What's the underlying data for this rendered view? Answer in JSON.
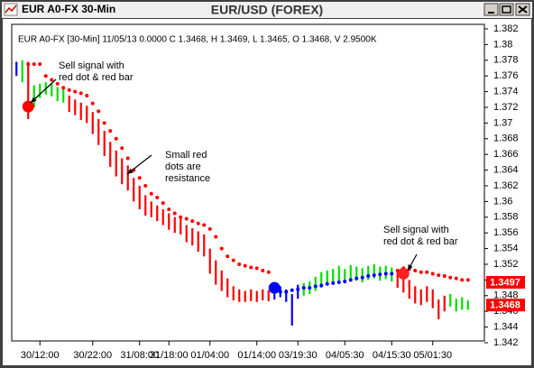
{
  "window": {
    "title": "EUR A0-FX 30-Min"
  },
  "chart_data": {
    "type": "price-bars",
    "title": "EUR/USD (FOREX)",
    "info": "EUR A0-FX [30-Min] 11/05/13  0.0000 C 1.3468, H 1.3469, L 1.3465, O 1.3468, V 2.9500K",
    "categories": [
      null,
      null,
      null,
      null,
      "30/12:00",
      null,
      null,
      null,
      null,
      null,
      null,
      null,
      null,
      "30/22:00",
      null,
      null,
      null,
      null,
      null,
      null,
      null,
      "31/08:00",
      null,
      null,
      null,
      null,
      "31/18:00",
      null,
      null,
      null,
      null,
      null,
      null,
      "01/04:00",
      null,
      null,
      null,
      null,
      null,
      null,
      null,
      "01/14:00",
      null,
      null,
      null,
      null,
      null,
      null,
      "03/19:30",
      null,
      null,
      null,
      null,
      null,
      null,
      null,
      "04/05:30",
      null,
      null,
      null,
      null,
      null,
      null,
      null,
      "04/15:30",
      null,
      null,
      null,
      null,
      null,
      null,
      "05/01:30",
      null,
      null,
      null,
      null,
      null,
      null
    ],
    "high": [
      1.3778,
      1.378,
      1.3778,
      1.3748,
      1.375,
      1.3752,
      1.375,
      1.3746,
      1.3744,
      1.3735,
      1.373,
      1.3726,
      1.3722,
      1.3714,
      1.3705,
      1.369,
      1.3676,
      1.3665,
      1.3655,
      1.3646,
      1.363,
      1.362,
      1.3608,
      1.36,
      1.3595,
      1.359,
      1.3585,
      1.358,
      1.3578,
      1.357,
      1.3566,
      1.3562,
      1.3558,
      1.354,
      1.3525,
      1.3512,
      1.3502,
      1.3492,
      1.3488,
      1.3486,
      1.3488,
      1.3486,
      1.3488,
      1.3487,
      1.349,
      1.3492,
      1.3488,
      1.3482,
      1.3494,
      1.3496,
      1.3498,
      1.3504,
      1.351,
      1.3512,
      1.3514,
      1.3518,
      1.3514,
      1.3519,
      1.3517,
      1.3515,
      1.3518,
      1.352,
      1.3517,
      1.3518,
      1.3516,
      1.351,
      1.3508,
      1.35,
      1.3492,
      1.3488,
      1.3492,
      1.3488,
      1.3475,
      1.348,
      1.3482,
      1.3476,
      1.3478,
      1.3474
    ],
    "low": [
      1.376,
      1.3752,
      1.3705,
      1.372,
      1.3732,
      1.3736,
      1.3734,
      1.3728,
      1.3726,
      1.3714,
      1.371,
      1.3704,
      1.37,
      1.3686,
      1.3672,
      1.3658,
      1.3644,
      1.3632,
      1.3622,
      1.3614,
      1.36,
      1.359,
      1.3582,
      1.358,
      1.3575,
      1.357,
      1.3564,
      1.356,
      1.3558,
      1.3548,
      1.3544,
      1.3536,
      1.353,
      1.3508,
      1.3494,
      1.3486,
      1.3478,
      1.3474,
      1.3472,
      1.3472,
      1.3473,
      1.3472,
      1.3474,
      1.3473,
      1.3475,
      1.3478,
      1.3472,
      1.3442,
      1.3476,
      1.348,
      1.3482,
      1.3486,
      1.349,
      1.3494,
      1.3496,
      1.3498,
      1.3496,
      1.35,
      1.3499,
      1.3497,
      1.35,
      1.3502,
      1.3499,
      1.3501,
      1.3498,
      1.349,
      1.3484,
      1.3476,
      1.347,
      1.3468,
      1.3472,
      1.3464,
      1.345,
      1.346,
      1.3466,
      1.346,
      1.3462,
      1.3462
    ],
    "bar_colors": [
      "#0000ff",
      "#00dd00",
      "#ff0000",
      "#00dd00",
      "#00dd00",
      "#00dd00",
      "#00dd00",
      "#00dd00",
      "#00dd00",
      "#ff0000",
      "#ff0000",
      "#ff0000",
      "#ff0000",
      "#ff0000",
      "#ff0000",
      "#ff0000",
      "#ff0000",
      "#ff0000",
      "#ff0000",
      "#ff0000",
      "#ff0000",
      "#ff0000",
      "#ff0000",
      "#ff0000",
      "#ff0000",
      "#ff0000",
      "#ff0000",
      "#ff0000",
      "#ff0000",
      "#ff0000",
      "#ff0000",
      "#ff0000",
      "#ff0000",
      "#ff0000",
      "#ff0000",
      "#ff0000",
      "#ff0000",
      "#ff0000",
      "#ff0000",
      "#ff0000",
      "#ff0000",
      "#ff0000",
      "#ff0000",
      "#ff0000",
      "#0000ff",
      "#0000ff",
      "#0000ff",
      "#0000ff",
      "#0000ff",
      "#00dd00",
      "#00dd00",
      "#00dd00",
      "#00dd00",
      "#00dd00",
      "#00dd00",
      "#00dd00",
      "#00dd00",
      "#00dd00",
      "#00dd00",
      "#00dd00",
      "#00dd00",
      "#00dd00",
      "#00dd00",
      "#00dd00",
      "#00dd00",
      "#ff0000",
      "#ff0000",
      "#ff0000",
      "#ff0000",
      "#ff0000",
      "#ff0000",
      "#ff0000",
      "#ff0000",
      "#ff0000",
      "#00dd00",
      "#00dd00",
      "#00dd00",
      "#00dd00"
    ],
    "series": [
      {
        "color": "#ff0000",
        "values": [
          null,
          null,
          1.3775,
          1.3775,
          1.3775,
          1.376,
          1.3755,
          1.375,
          1.3745,
          1.3742,
          1.374,
          1.3738,
          1.3735,
          1.3725,
          1.3715,
          1.37,
          1.369,
          1.368,
          1.3668,
          1.3655,
          1.364,
          1.363,
          1.362,
          1.361,
          1.3605,
          1.3598,
          1.359,
          1.3585,
          1.358,
          1.3578,
          1.3575,
          1.3572,
          1.357,
          1.3565,
          1.3555,
          1.354,
          1.353,
          1.3525,
          1.352,
          1.3518,
          1.3516,
          1.3515,
          1.3512,
          1.351,
          null,
          null,
          null,
          null,
          null,
          null,
          null,
          null,
          null,
          null,
          null,
          null,
          null,
          null,
          null,
          null,
          null,
          null,
          null,
          null,
          null,
          1.3512,
          1.3515,
          1.3514,
          1.3512,
          1.351,
          1.351,
          1.3508,
          1.3506,
          1.3505,
          1.3503,
          1.3502,
          1.35,
          1.35
        ]
      },
      {
        "color": "#0000ff",
        "values": [
          null,
          null,
          null,
          null,
          null,
          null,
          null,
          null,
          null,
          null,
          null,
          null,
          null,
          null,
          null,
          null,
          null,
          null,
          null,
          null,
          null,
          null,
          null,
          null,
          null,
          null,
          null,
          null,
          null,
          null,
          null,
          null,
          null,
          null,
          null,
          null,
          null,
          null,
          null,
          null,
          null,
          null,
          null,
          null,
          1.3488,
          1.3485,
          1.3485,
          1.3487,
          1.3488,
          1.349,
          1.349,
          1.3492,
          1.3493,
          1.3495,
          1.3496,
          1.3497,
          1.3498,
          1.35,
          1.3502,
          1.3503,
          1.3505,
          1.3506,
          1.3507,
          1.3508,
          1.3508,
          null,
          null,
          null,
          null,
          null,
          null,
          null,
          null,
          null,
          null,
          null,
          null,
          null
        ]
      }
    ],
    "signals": [
      {
        "x": 2,
        "value": 1.3721,
        "color": "#ff0000"
      },
      {
        "x": 44,
        "value": 1.349,
        "color": "#0000ff"
      },
      {
        "x": 66,
        "value": 1.3508,
        "color": "#ff2020"
      }
    ],
    "annotations": [
      {
        "lines": [
          "Sell signal with",
          "red dot & red bar"
        ]
      },
      {
        "lines": [
          "Small red",
          "dots are",
          "resistance"
        ]
      },
      {
        "lines": [
          "Sell signal with",
          "red dot & red bar"
        ]
      }
    ],
    "price_labels": [
      {
        "value": 1.3497,
        "label": "1.3497",
        "color": "#ff0000"
      },
      {
        "value": 1.3468,
        "label": "1.3468",
        "color": "#ff0000"
      }
    ],
    "xlim": [
      -0.5,
      79.5
    ],
    "ylim": [
      1.342,
      1.382
    ],
    "yticks": [
      1.342,
      1.344,
      1.346,
      1.348,
      1.35,
      1.352,
      1.354,
      1.356,
      1.358,
      1.36,
      1.362,
      1.364,
      1.366,
      1.368,
      1.37,
      1.372,
      1.374,
      1.376,
      1.378,
      1.38,
      1.382
    ]
  }
}
